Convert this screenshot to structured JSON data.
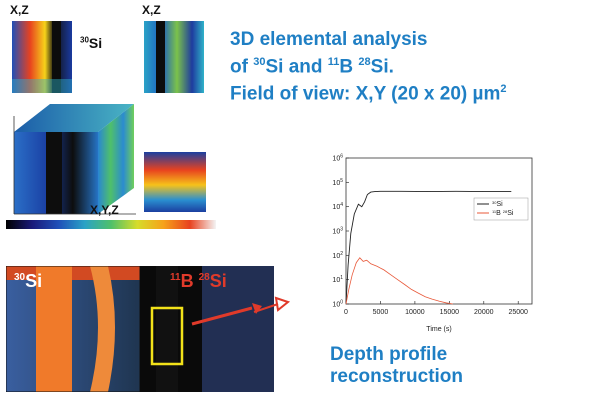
{
  "labels": {
    "xz_left": "X,Z",
    "xz_right": "X,Z",
    "si30": "30Si",
    "si30_mass": "30",
    "si30_elem": "Si",
    "xyz": "X,Y,Z",
    "img_si30_mass": "30",
    "img_si30_elem": "Si",
    "img_b_mass": "11",
    "img_b_elem": "B",
    "img_si28_mass": "28",
    "img_si28_elem": "Si"
  },
  "headline": {
    "line1": "3D elemental analysis",
    "line2_prefix": "of ",
    "line2_sup1": "30",
    "line2_mid": "Si and ",
    "line2_sup2": "11",
    "line2_mid2": "B ",
    "line2_sup3": "28",
    "line2_end": "Si.",
    "line3_prefix": "Field of view: X,Y (20 x 20) µm",
    "line3_sup": "2"
  },
  "caption": {
    "line1": "Depth profile",
    "line2": "reconstruction"
  },
  "colors": {
    "accent_blue": "#1f7fc4",
    "arrow_red": "#e03a2a",
    "roi_yellow": "#f2e21a",
    "si_orange": "#f07a2a"
  },
  "chart_data": {
    "type": "line",
    "xlabel": "Time (s)",
    "ylabel": "",
    "x_ticks": [
      "0",
      "5000",
      "10000",
      "15000",
      "20000",
      "25000"
    ],
    "y_ticks": [
      "10^0",
      "10^1",
      "10^2",
      "10^3",
      "10^4",
      "10^5",
      "10^6"
    ],
    "xlim": [
      0,
      27000
    ],
    "ylim_log10": [
      0,
      6
    ],
    "log_y": true,
    "legend_position": "right",
    "series": [
      {
        "name": "30Si",
        "legend_mass": "30",
        "legend_elem": "Si",
        "color": "#222222",
        "x": [
          0,
          300,
          700,
          1200,
          1800,
          2300,
          2700,
          3100,
          3600,
          4200,
          5000,
          6000,
          8000,
          12000,
          16000,
          20000,
          24000
        ],
        "y_log10": [
          0,
          1.6,
          2.9,
          3.7,
          4.1,
          4.0,
          4.2,
          4.5,
          4.6,
          4.62,
          4.63,
          4.63,
          4.63,
          4.62,
          4.63,
          4.62,
          4.62
        ]
      },
      {
        "name": "11B 28Si",
        "legend_mass1": "11",
        "legend_elem1": "B ",
        "legend_mass2": "28",
        "legend_elem2": "Si",
        "color": "#e8593a",
        "x": [
          0,
          400,
          900,
          1500,
          2000,
          2500,
          3000,
          3600,
          4500,
          5500,
          6500,
          7500,
          8500,
          9500,
          10500,
          11500,
          12500,
          13500,
          14500,
          15500
        ],
        "y_log10": [
          0,
          0.6,
          1.2,
          1.7,
          1.9,
          1.75,
          1.8,
          1.65,
          1.55,
          1.4,
          1.2,
          1.0,
          0.8,
          0.6,
          0.45,
          0.3,
          0.2,
          0.12,
          0.05,
          0.0
        ]
      }
    ]
  }
}
